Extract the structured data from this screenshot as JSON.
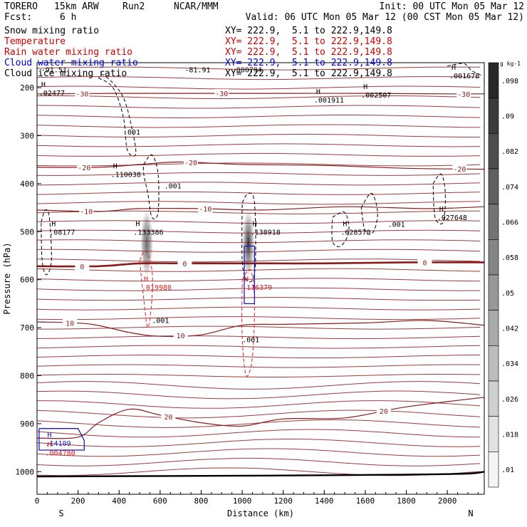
{
  "header": {
    "model": "TORERO",
    "grid": "15km ARW",
    "run": "Run2",
    "org": "NCAR/MMM",
    "fcst_label": "Fcst:",
    "fcst_value": "6 h",
    "init": "Init: 00 UTC Mon 05 Mar 12",
    "valid": "Valid: 06 UTC Mon 05 Mar 12 (00 CST Mon 05 Mar 12)"
  },
  "legend": [
    {
      "name": "Snow mixing ratio",
      "xy": "XY= 222.9,  5.1 to 222.9,149.8",
      "color": "#000000"
    },
    {
      "name": "Temperature",
      "xy": "XY= 222.9,  5.1 to 222.9,149.8",
      "color": "#cc0000"
    },
    {
      "name": "Rain water mixing ratio",
      "xy": "XY= 222.9,  5.1 to 222.9,149.8",
      "color": "#cc0000"
    },
    {
      "name": "Cloud water mixing ratio",
      "xy": "XY= 222.9,  5.1 to 222.9,149.8",
      "color": "#0000cc"
    },
    {
      "name": "Cloud ice mixing ratio",
      "xy": "XY= 222.9,  5.1 to 222.9,149.8",
      "color": "#000000"
    }
  ],
  "colors": {
    "temperature": "#8b1a1a",
    "rain": "#dd2222",
    "cloud_water": "#1a1acc",
    "ice": "#000000",
    "terrain": "#000000"
  },
  "chart_data": {
    "type": "contour",
    "title": "Vertical cross-section",
    "xlabel": "Distance (km)",
    "ylabel": "Pressure (hPa)",
    "xlim": [
      0,
      2180
    ],
    "ylim": [
      1047,
      148
    ],
    "x_ticks": [
      0,
      200,
      400,
      600,
      800,
      1000,
      1200,
      1400,
      1600,
      1800,
      2000
    ],
    "y_ticks": [
      200,
      300,
      400,
      500,
      600,
      700,
      800,
      900,
      1000
    ],
    "end_labels": {
      "left": "S",
      "right": "N"
    },
    "colorbar": {
      "unit": "g kg-1",
      "ticks": [
        ".01",
        ".018",
        ".026",
        ".034",
        ".042",
        ".05",
        ".058",
        ".066",
        ".074",
        ".082",
        ".09",
        ".098"
      ]
    },
    "temperature_contours": [
      {
        "label": "-30",
        "points": [
          [
            0,
            213
          ],
          [
            400,
            212
          ],
          [
            800,
            212
          ],
          [
            1200,
            212
          ],
          [
            1600,
            212
          ],
          [
            2000,
            213
          ],
          [
            2180,
            213
          ]
        ],
        "labels_at": [
          [
            220,
            -30
          ],
          [
            900,
            -30
          ],
          [
            2080,
            -30
          ]
        ]
      },
      {
        "label": "-20",
        "points": [
          [
            0,
            366
          ],
          [
            300,
            366
          ],
          [
            500,
            360
          ],
          [
            700,
            355
          ],
          [
            1000,
            360
          ],
          [
            1400,
            362
          ],
          [
            1800,
            368
          ],
          [
            2180,
            370
          ]
        ],
        "labels_at": [
          [
            230,
            -20
          ],
          [
            750,
            -20
          ],
          [
            2060,
            -20
          ]
        ]
      },
      {
        "label": "-10",
        "points": [
          [
            0,
            455
          ],
          [
            300,
            458
          ],
          [
            500,
            452
          ],
          [
            800,
            452
          ],
          [
            1100,
            455
          ],
          [
            1500,
            448
          ],
          [
            1900,
            452
          ],
          [
            2180,
            448
          ]
        ],
        "labels_at": [
          [
            240,
            -10
          ],
          [
            820,
            -10
          ]
        ]
      },
      {
        "label": "0",
        "points": [
          [
            0,
            572
          ],
          [
            300,
            572
          ],
          [
            500,
            566
          ],
          [
            700,
            566
          ],
          [
            1000,
            566
          ],
          [
            1400,
            566
          ],
          [
            1800,
            564
          ],
          [
            2180,
            564
          ]
        ],
        "labels_at": [
          [
            220,
            0
          ],
          [
            720,
            0
          ],
          [
            1890,
            0
          ]
        ]
      },
      {
        "label": "10",
        "points": [
          [
            0,
            688
          ],
          [
            250,
            692
          ],
          [
            450,
            710
          ],
          [
            600,
            718
          ],
          [
            800,
            715
          ],
          [
            1000,
            695
          ],
          [
            1200,
            693
          ],
          [
            1600,
            690
          ],
          [
            1900,
            685
          ],
          [
            2180,
            695
          ]
        ],
        "labels_at": [
          [
            160,
            10
          ],
          [
            700,
            10
          ]
        ]
      },
      {
        "label": "20",
        "points": [
          [
            0,
            930
          ],
          [
            200,
            928
          ],
          [
            300,
            898
          ],
          [
            450,
            870
          ],
          [
            600,
            882
          ],
          [
            800,
            898
          ],
          [
            1000,
            905
          ],
          [
            1200,
            890
          ],
          [
            1500,
            888
          ],
          [
            1800,
            865
          ],
          [
            2180,
            845
          ]
        ],
        "labels_at": [
          [
            640,
            20
          ],
          [
            1690,
            20
          ]
        ]
      }
    ],
    "maxima_labels": [
      {
        "x": 60,
        "p": 500,
        "value": ".08177",
        "color": "ice"
      },
      {
        "x": 470,
        "p": 500,
        "value": ".133386",
        "color": "ice"
      },
      {
        "x": 1040,
        "p": 500,
        "value": ".138918",
        "color": "ice"
      },
      {
        "x": 1480,
        "p": 500,
        "value": ".028570",
        "color": "ice"
      },
      {
        "x": 1950,
        "p": 470,
        "value": ".027648",
        "color": "ice"
      },
      {
        "x": 360,
        "p": 380,
        "value": ".110038",
        "color": "ice"
      },
      {
        "x": 1350,
        "p": 225,
        "value": ".001911",
        "color": "ice"
      },
      {
        "x": 1580,
        "p": 215,
        "value": ".002507",
        "color": "ice"
      },
      {
        "x": 2010,
        "p": 175,
        "value": ".001678",
        "color": "ice"
      },
      {
        "x": 10,
        "p": 210,
        "value": ".02477",
        "color": "ice"
      },
      {
        "x": 510,
        "p": 615,
        "value": ".019980",
        "color": "rain"
      },
      {
        "x": 1000,
        "p": 615,
        "value": ".116379",
        "color": "rain"
      },
      {
        "x": 40,
        "p": 940,
        "value": ".14109",
        "color": "cloud_water"
      },
      {
        "x": 40,
        "p": 960,
        "value": ".004780",
        "color": "rain"
      }
    ],
    "contour_value_labels": [
      {
        "x": 420,
        "p": 298,
        "value": ".001"
      },
      {
        "x": 620,
        "p": 410,
        "value": ".001"
      },
      {
        "x": 1710,
        "p": 490,
        "value": ".001"
      },
      {
        "x": 560,
        "p": 690,
        "value": ".001"
      },
      {
        "x": 1000,
        "p": 730,
        "value": ".001"
      }
    ],
    "top_labels": [
      {
        "x": 20,
        "value": "-91.51"
      },
      {
        "x": 720,
        "value": "-81.91"
      },
      {
        "x": 950,
        "value": ".000794"
      }
    ],
    "shading_columns": [
      {
        "x": 535,
        "p_top": 445,
        "p_bottom": 590,
        "max": 0.07
      },
      {
        "x": 1030,
        "p_top": 445,
        "p_bottom": 590,
        "max": 0.098
      }
    ]
  }
}
